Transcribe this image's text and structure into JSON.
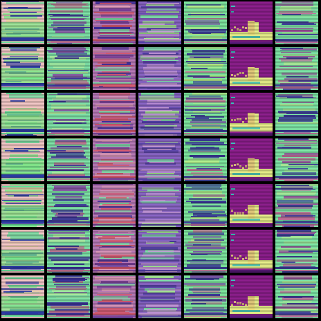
{
  "grid": {
    "rows": 7,
    "cols": 7,
    "columns": [
      {
        "style": "pink-green",
        "bg": "#f3c8c8",
        "colors": [
          "#f5c7c2",
          "#7ef08a",
          "#5fe39a",
          "#2a3aa8",
          "#e8d7a3"
        ]
      },
      {
        "style": "teal-violet",
        "bg": "#7fe3a8",
        "colors": [
          "#7fe3a8",
          "#8a4fa8",
          "#c26a8f",
          "#3c2f9a",
          "#b8f0a0"
        ]
      },
      {
        "style": "pink-violet",
        "bg": "#b97ab8",
        "colors": [
          "#e4a0b8",
          "#7fe3a8",
          "#7a3f9a",
          "#d85a6f",
          "#3a2a9a"
        ]
      },
      {
        "style": "violet-mint",
        "bg": "#8b66c7",
        "colors": [
          "#8b66c7",
          "#7ee8a8",
          "#4b3aa0",
          "#c79ad8",
          "#a8f090"
        ]
      },
      {
        "style": "mint-violet",
        "bg": "#7fe8a0",
        "colors": [
          "#7fe8a0",
          "#7a4fa8",
          "#c97a9a",
          "#3c3a9a",
          "#b8f08a"
        ]
      },
      {
        "style": "magenta-lime",
        "bg": "#8e1f8e",
        "colors": [
          "#8e1f8e",
          "#e8f08a",
          "#3ac8c0",
          "#f0e07a",
          "#5a1a7a"
        ]
      },
      {
        "style": "mint-magenta",
        "bg": "#7fe8a8",
        "colors": [
          "#7fe8a8",
          "#9a4a9a",
          "#c86a9a",
          "#3c3a9a",
          "#b0f09a"
        ]
      }
    ]
  }
}
